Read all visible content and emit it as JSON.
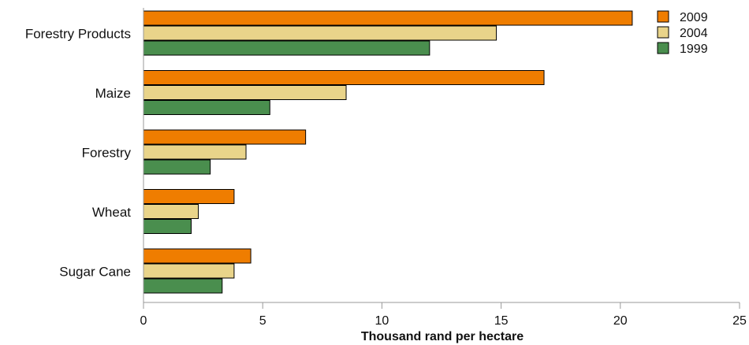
{
  "chart_data": {
    "type": "bar",
    "orientation": "horizontal",
    "title": "",
    "xlabel": "Thousand rand per hectare",
    "ylabel": "",
    "xlim": [
      0,
      25
    ],
    "xticks": [
      0,
      5,
      10,
      15,
      20,
      25
    ],
    "grid": false,
    "legend_position": "top-right",
    "categories": [
      "Forestry Products",
      "Maize",
      "Forestry",
      "Wheat",
      "Sugar Cane"
    ],
    "series": [
      {
        "name": "2009",
        "color": "#ef7d00",
        "values": [
          20.5,
          16.8,
          6.8,
          3.8,
          4.5
        ]
      },
      {
        "name": "2004",
        "color": "#e9d48a",
        "values": [
          14.8,
          8.5,
          4.3,
          2.3,
          3.8
        ]
      },
      {
        "name": "1999",
        "color": "#4a8e4e",
        "values": [
          12.0,
          5.3,
          2.8,
          2.0,
          3.3
        ]
      }
    ]
  }
}
